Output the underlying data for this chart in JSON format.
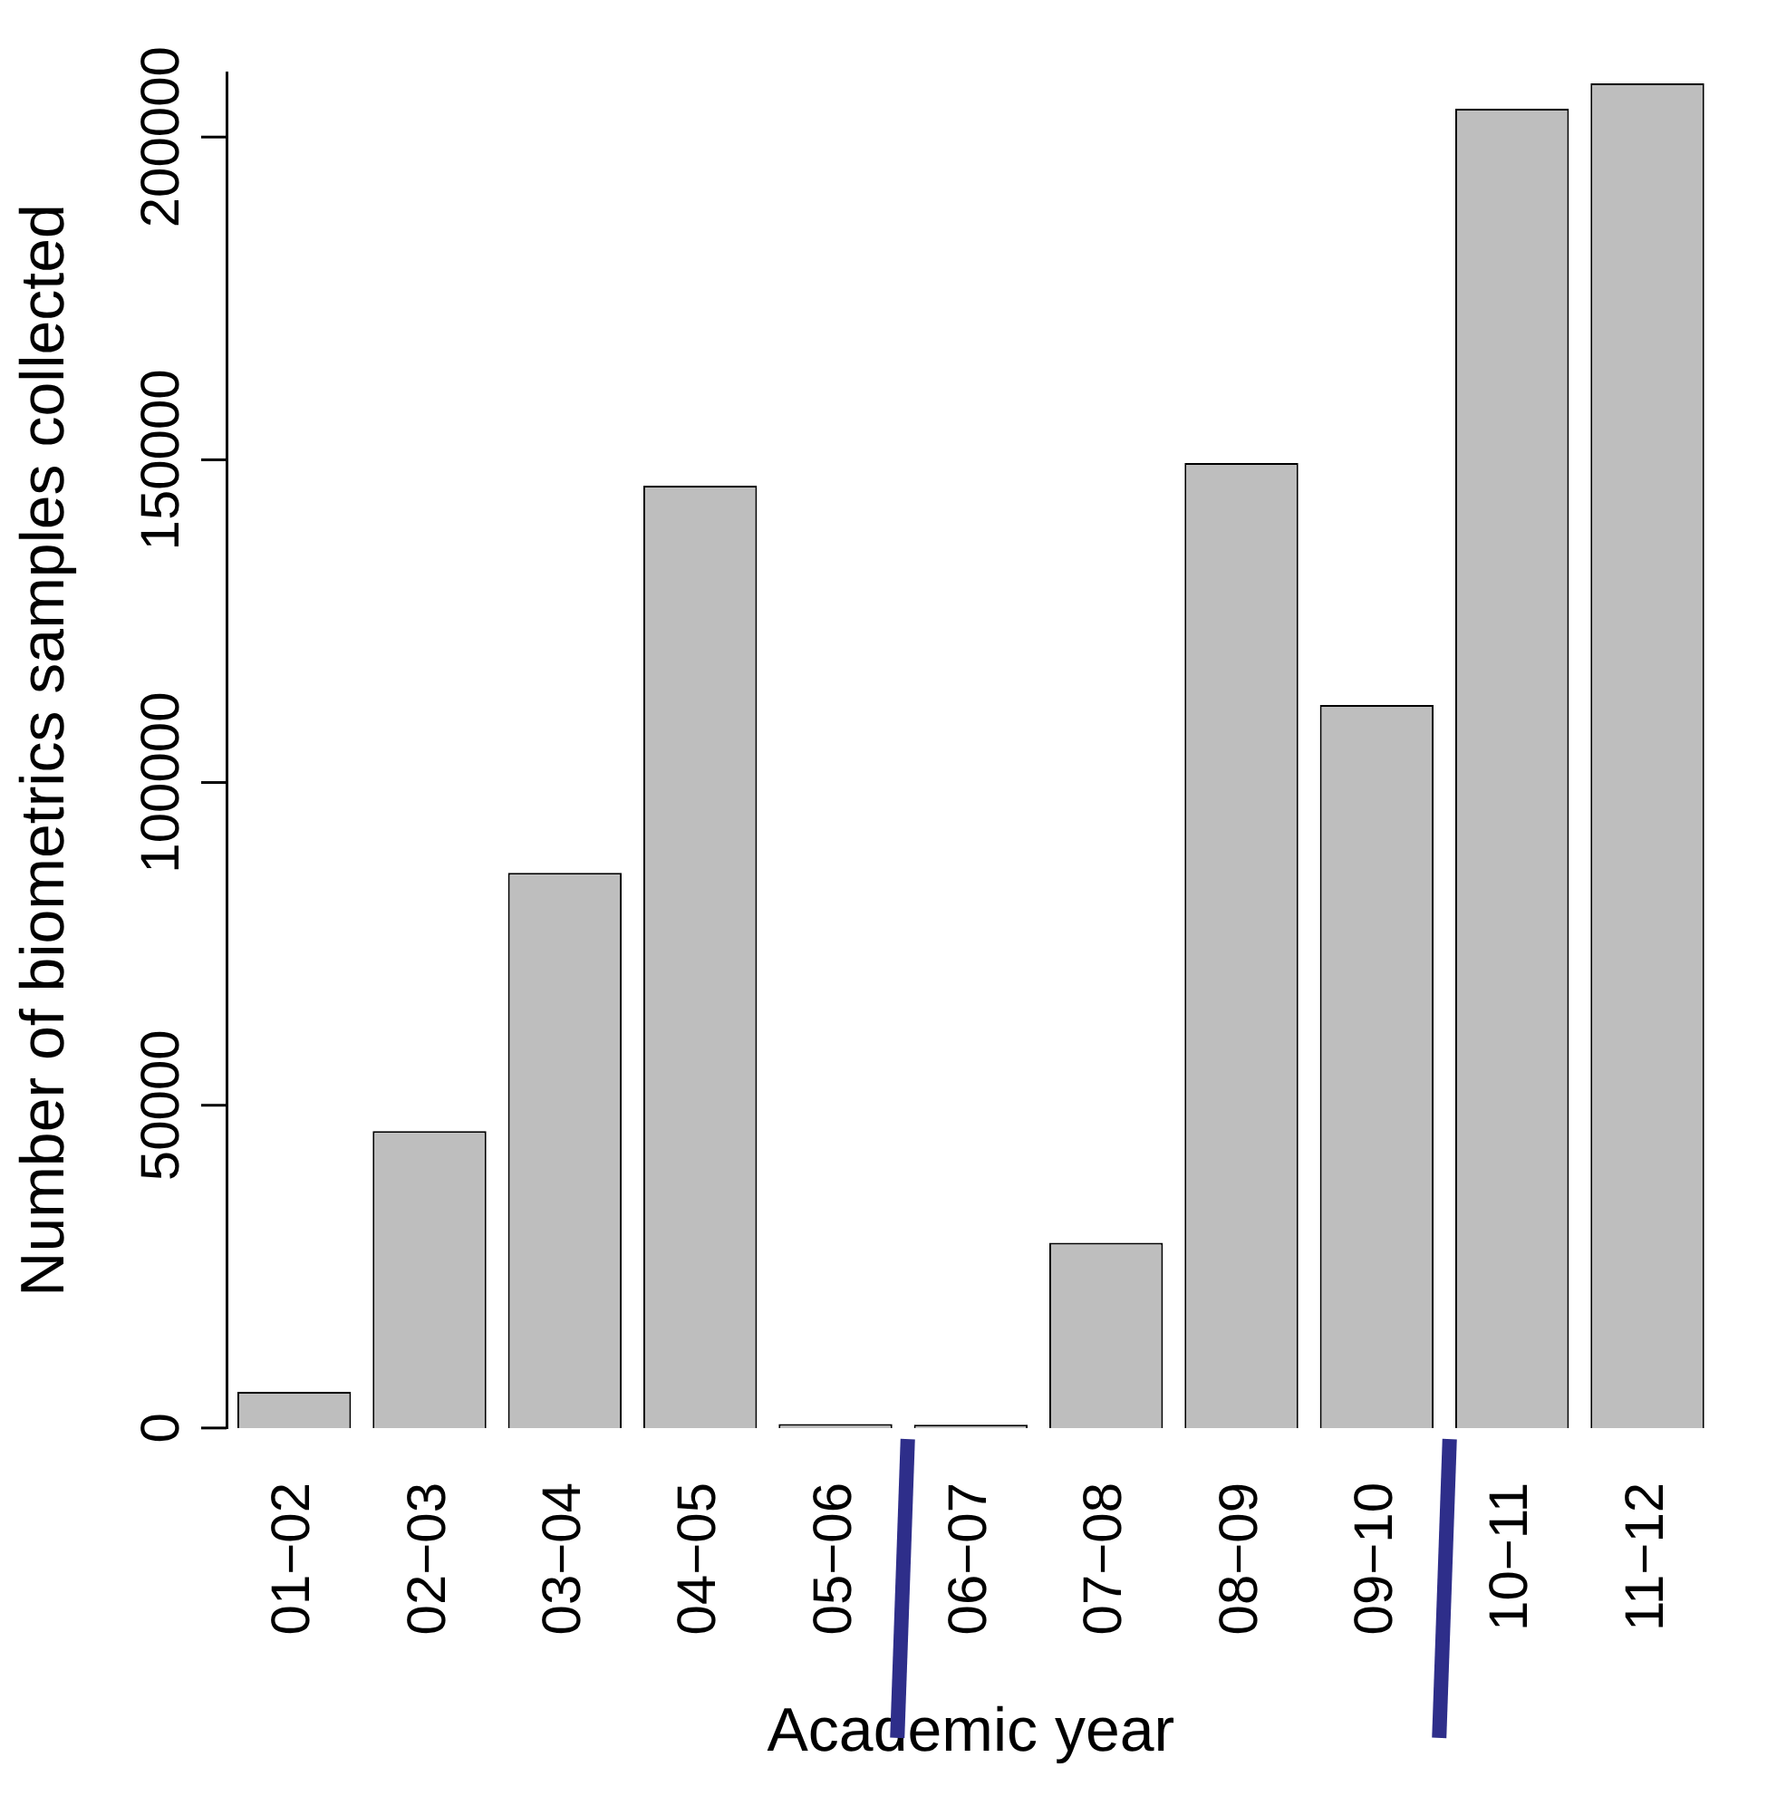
{
  "chart_data": {
    "type": "bar",
    "xlabel": "Academic year",
    "ylabel": "Number of biometrics samples collected",
    "categories": [
      "01−02",
      "02−03",
      "03−04",
      "04−05",
      "05−06",
      "06−07",
      "07−08",
      "08−09",
      "09−10",
      "10−11",
      "11−12"
    ],
    "values": [
      5600,
      46000,
      86000,
      146000,
      600,
      500,
      28700,
      149500,
      112000,
      204400,
      208300
    ],
    "color": "#bebebe",
    "ylim": [
      0,
      210000
    ],
    "yticks": [
      0,
      50000,
      100000,
      150000,
      200000
    ],
    "grid": false,
    "legend": false
  }
}
